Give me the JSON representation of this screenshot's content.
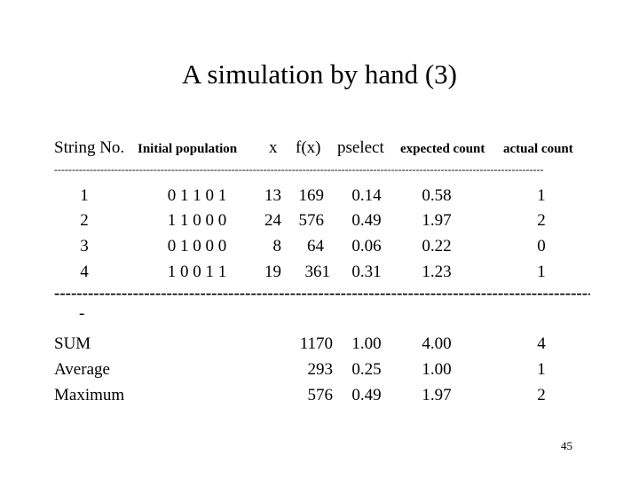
{
  "title": "A simulation by hand (3)",
  "headers": {
    "string_no": "String No.",
    "initial_population": "Initial population",
    "x": "x",
    "fx": "f(x)",
    "pselect": "pselect",
    "expected_count": "expected count",
    "actual_count": "actual count"
  },
  "rows": [
    {
      "no": "1",
      "pop": "0 1 1 0 1",
      "x": "13",
      "fx": "169",
      "pselect": "0.14",
      "expected": "0.58",
      "actual": "1"
    },
    {
      "no": "2",
      "pop": "1 1 0 0 0",
      "x": "24",
      "fx": "576",
      "pselect": "0.49",
      "expected": "1.97",
      "actual": "2"
    },
    {
      "no": "3",
      "pop": "0 1 0 0 0",
      "x": "8",
      "fx": "64",
      "pselect": "0.06",
      "expected": "0.22",
      "actual": "0"
    },
    {
      "no": "4",
      "pop": "1 0 0 1 1",
      "x": "19",
      "fx": "361",
      "pselect": "0.31",
      "expected": "1.23",
      "actual": "1"
    }
  ],
  "dash_tail": "-",
  "summary": [
    {
      "label": "SUM",
      "fx": "1170",
      "pselect": "1.00",
      "expected": "4.00",
      "actual": "4"
    },
    {
      "label": "Average",
      "fx": "293",
      "pselect": "0.25",
      "expected": "1.00",
      "actual": "1"
    },
    {
      "label": "Maximum",
      "fx": "576",
      "pselect": "0.49",
      "expected": "1.97",
      "actual": "2"
    }
  ],
  "page_number": "45"
}
